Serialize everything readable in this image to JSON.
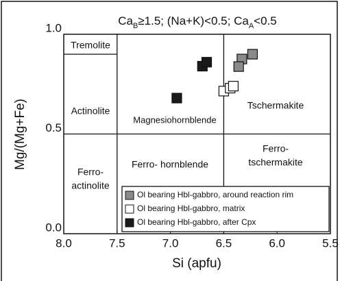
{
  "chart_data": {
    "type": "scatter",
    "title": [
      "Ca",
      "B",
      "≥1.5; (Na+K)<0.5; Ca",
      "A",
      "<0.5"
    ],
    "x_label": "Si (apfu)",
    "y_label": "Mg/(Mg+Fe)",
    "xlim": [
      8.0,
      5.5
    ],
    "ylim": [
      0,
      1
    ],
    "xticks": [
      {
        "value": 8,
        "label": "8.0"
      },
      7.5,
      {
        "value": 7,
        "label": "7.0"
      },
      6.5,
      {
        "value": 6,
        "label": "6.0"
      },
      5.5
    ],
    "yticks": [
      {
        "value": 0,
        "label": "0.0"
      },
      0.5,
      {
        "value": 1,
        "label": "1.0"
      }
    ],
    "boundaries": [
      {
        "x": [
          8.0,
          7.5
        ],
        "y": [
          0.9,
          0.9
        ]
      },
      {
        "x": [
          7.5,
          7.5
        ],
        "y": [
          0,
          1
        ]
      },
      {
        "x": [
          6.5,
          6.5
        ],
        "y": [
          0,
          1
        ]
      },
      {
        "x": [
          8.0,
          5.5
        ],
        "y": [
          0.5,
          0.5
        ]
      }
    ],
    "annotations": [
      [
        "Tremolite"
      ],
      [
        "Actinolite"
      ],
      [
        "Magnesiohornblende"
      ],
      [
        "Tschermakite"
      ],
      [
        "Ferro-",
        "actinolite"
      ],
      [
        "Ferro- hornblende"
      ],
      [
        "Ferro-",
        "tschermakite"
      ]
    ],
    "legend": "lower right",
    "series": [
      {
        "name": "Ol bearing Hbl-gabbro, around reaction rim",
        "color": "#8a8a8a",
        "x": [
          6.23,
          6.33,
          6.36
        ],
        "values": [
          0.9,
          0.876,
          0.838
        ]
      },
      {
        "name": "Ol bearing Hbl-gabbro, matrix",
        "color": "#ffffff",
        "x": [
          6.5,
          6.44,
          6.41
        ],
        "values": [
          0.715,
          0.73,
          0.74
        ]
      },
      {
        "name": "Ol bearing Hbl-gabbro, after Cpx",
        "color": "#1a1a1a",
        "x": [
          6.7,
          6.66,
          6.94
        ],
        "values": [
          0.84,
          0.86,
          0.68
        ]
      }
    ]
  }
}
